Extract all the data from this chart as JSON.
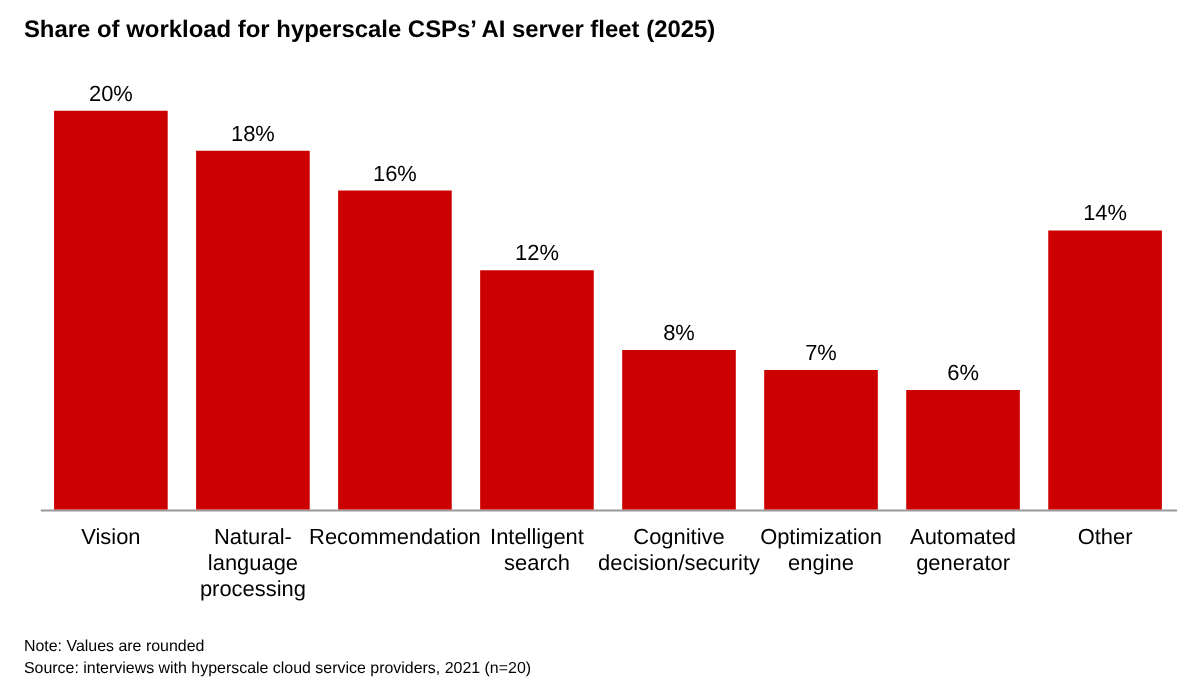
{
  "chart_data": {
    "type": "bar",
    "title": "Share of workload for hyperscale CSPs’ AI server fleet (2025)",
    "categories": [
      "Vision",
      "Natural-\nlanguage\nprocessing",
      "Recommendation",
      "Intelligent\nsearch",
      "Cognitive\ndecision/security",
      "Optimization\nengine",
      "Automated\ngenerator",
      "Other"
    ],
    "values": [
      20,
      18,
      16,
      12,
      8,
      7,
      6,
      14
    ],
    "value_labels": [
      "20%",
      "18%",
      "16%",
      "12%",
      "8%",
      "7%",
      "6%",
      "14%"
    ],
    "color": "#cc0000",
    "annotations": [
      "Note: Values are rounded",
      "Source: interviews with hyperscale cloud service providers, 2021 (n=20)"
    ]
  }
}
